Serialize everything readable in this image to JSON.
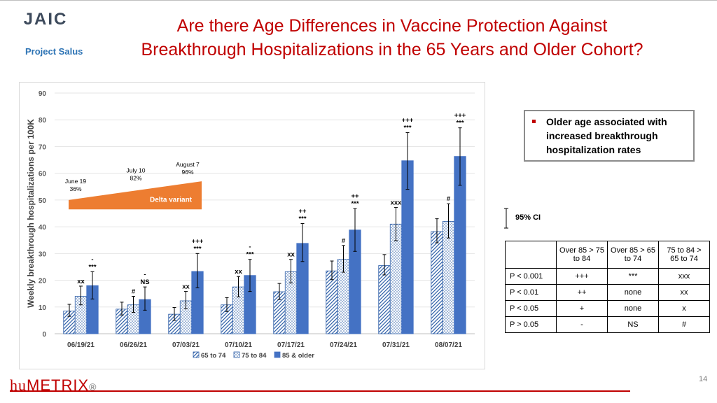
{
  "header": {
    "logo_text": "JAIC",
    "logo_subtitle": "Project Salus",
    "title_line1": "Are there Age Differences in Vaccine Protection Against",
    "title_line2": "Breakthrough Hospitalizations in the 65 Years and Older Cohort?"
  },
  "colors": {
    "title": "#c00000",
    "series_65_74": "#2e5fa8",
    "series_75_84": "#2e5fa8",
    "series_85_older": "#4472c4",
    "delta_band": "#ed7d31"
  },
  "chart_data": {
    "type": "bar",
    "title": "",
    "xlabel": "",
    "ylabel": "Weekly breakthrough hospitalizations per 100K",
    "ylim": [
      0,
      90
    ],
    "yticks": [
      0,
      10,
      20,
      30,
      40,
      50,
      60,
      70,
      80,
      90
    ],
    "grid": true,
    "legend_position": "bottom",
    "categories": [
      "06/19/21",
      "06/26/21",
      "07/03/21",
      "07/10/21",
      "07/17/21",
      "07/24/21",
      "07/31/21",
      "08/07/21"
    ],
    "series": [
      {
        "name": "65 to 74",
        "pattern": "diagonal-hatch",
        "values": [
          8.5,
          9.2,
          7.3,
          10.8,
          15.7,
          23.5,
          25.5,
          38.2
        ],
        "ci_low": [
          6.5,
          7.0,
          5.0,
          8.3,
          12.8,
          20.2,
          22.0,
          34.0
        ],
        "ci_high": [
          11.0,
          11.8,
          9.8,
          13.5,
          18.8,
          27.2,
          29.6,
          43.0
        ]
      },
      {
        "name": "75 to 84",
        "pattern": "dotted",
        "values": [
          14.0,
          10.8,
          12.3,
          17.5,
          23.2,
          27.8,
          41.0,
          42.0
        ],
        "ci_low": [
          10.8,
          8.0,
          9.3,
          13.8,
          19.0,
          23.0,
          34.8,
          35.8
        ],
        "ci_high": [
          17.8,
          14.0,
          15.8,
          21.4,
          27.8,
          33.0,
          47.2,
          48.6
        ]
      },
      {
        "name": "85 & older",
        "pattern": "solid",
        "values": [
          18.0,
          12.8,
          23.3,
          21.8,
          33.8,
          38.8,
          64.7,
          66.3
        ],
        "ci_low": [
          13.0,
          8.8,
          17.2,
          15.8,
          27.0,
          30.8,
          54.0,
          55.5
        ],
        "ci_high": [
          23.2,
          17.5,
          30.0,
          27.8,
          41.2,
          46.8,
          75.2,
          77.0
        ]
      }
    ],
    "significance_labels": [
      {
        "category": "06/19/21",
        "series": "75 to 84",
        "lines": [
          "xx"
        ]
      },
      {
        "category": "06/19/21",
        "series": "85 & older",
        "lines": [
          "-",
          "***"
        ]
      },
      {
        "category": "06/26/21",
        "series": "75 to 84",
        "lines": [
          "#"
        ]
      },
      {
        "category": "06/26/21",
        "series": "85 & older",
        "lines": [
          "-",
          "NS"
        ]
      },
      {
        "category": "07/03/21",
        "series": "75 to 84",
        "lines": [
          "xx"
        ]
      },
      {
        "category": "07/03/21",
        "series": "85 & older",
        "lines": [
          "+++",
          "***"
        ]
      },
      {
        "category": "07/10/21",
        "series": "75 to 84",
        "lines": [
          "xx"
        ]
      },
      {
        "category": "07/10/21",
        "series": "85 & older",
        "lines": [
          "-",
          "***"
        ]
      },
      {
        "category": "07/17/21",
        "series": "75 to 84",
        "lines": [
          "xx"
        ]
      },
      {
        "category": "07/17/21",
        "series": "85 & older",
        "lines": [
          "++",
          "***"
        ]
      },
      {
        "category": "07/24/21",
        "series": "75 to 84",
        "lines": [
          "#"
        ]
      },
      {
        "category": "07/24/21",
        "series": "85 & older",
        "lines": [
          "++",
          "***"
        ]
      },
      {
        "category": "07/31/21",
        "series": "75 to 84",
        "lines": [
          "xxx"
        ]
      },
      {
        "category": "07/31/21",
        "series": "85 & older",
        "lines": [
          "+++",
          "***"
        ]
      },
      {
        "category": "08/07/21",
        "series": "75 to 84",
        "lines": [
          "#"
        ]
      },
      {
        "category": "08/07/21",
        "series": "85 & older",
        "lines": [
          "+++",
          "***"
        ]
      }
    ],
    "delta_annotation": {
      "label": "Delta variant",
      "start_value": 50,
      "end_value": 57,
      "milestones": [
        {
          "date": "June 19",
          "pct": "36%"
        },
        {
          "date": "July 10",
          "pct": "82%"
        },
        {
          "date": "August 7",
          "pct": "96%"
        }
      ]
    }
  },
  "bullet": {
    "text": "Older age associated with increased breakthrough hospitalization rates"
  },
  "ci_legend": {
    "label": "95% CI"
  },
  "sig_table": {
    "headers": [
      "",
      "Over 85 > 75 to 84",
      "Over 85 > 65 to 74",
      "75 to 84 > 65 to 74"
    ],
    "rows": [
      {
        "label": "P < 0.001",
        "c1": "+++",
        "c2": "***",
        "c3": "xxx"
      },
      {
        "label": "P < 0.01",
        "c1": "++",
        "c2": "none",
        "c3": "xx"
      },
      {
        "label": "P < 0.05",
        "c1": "+",
        "c2": "none",
        "c3": "x"
      },
      {
        "label": "P > 0.05",
        "c1": "-",
        "c2": "NS",
        "c3": "#"
      }
    ]
  },
  "footer": {
    "brand_part1": "hu",
    "brand_part2": "METRIX",
    "brand_mark": "®",
    "page_number": "14"
  }
}
